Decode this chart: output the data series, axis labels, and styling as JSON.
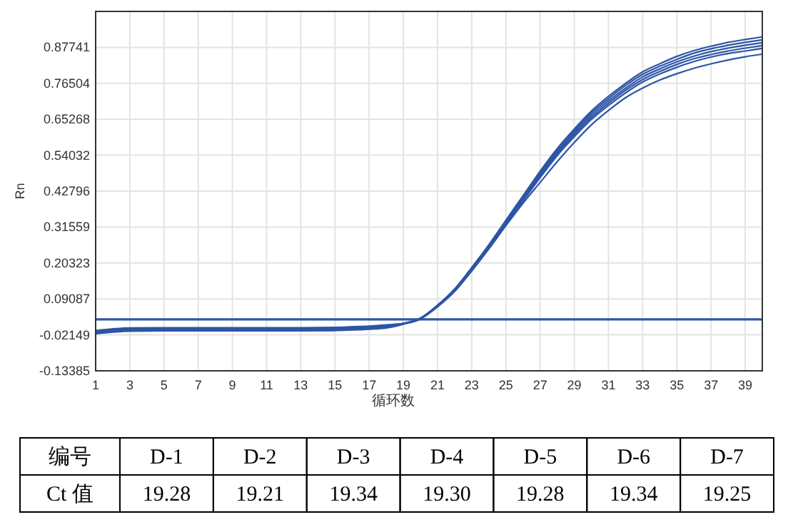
{
  "chart_data": {
    "type": "line",
    "xlabel": "循环数",
    "ylabel": "Rn",
    "x": [
      1,
      3,
      5,
      7,
      9,
      11,
      13,
      15,
      16,
      17,
      18,
      19,
      20,
      21,
      22,
      23,
      24,
      25,
      26,
      27,
      28,
      29,
      30,
      31,
      32,
      33,
      34,
      35,
      36,
      37,
      38,
      39,
      40
    ],
    "series": [
      {
        "color": "#2e55a5",
        "values": [
          -0.008,
          0.0,
          0.001,
          0.001,
          0.001,
          0.001,
          0.001,
          0.002,
          0.004,
          0.006,
          0.01,
          0.014,
          0.031,
          0.071,
          0.122,
          0.189,
          0.26,
          0.337,
          0.413,
          0.49,
          0.561,
          0.622,
          0.678,
          0.724,
          0.765,
          0.801,
          0.826,
          0.849,
          0.867,
          0.881,
          0.893,
          0.902,
          0.91
        ]
      },
      {
        "color": "#2e55a5",
        "values": [
          -0.01,
          -0.002,
          -0.001,
          -0.001,
          -0.001,
          -0.001,
          -0.001,
          0.0,
          0.002,
          0.004,
          0.008,
          0.014,
          0.03,
          0.071,
          0.121,
          0.187,
          0.258,
          0.333,
          0.409,
          0.485,
          0.556,
          0.616,
          0.672,
          0.717,
          0.758,
          0.793,
          0.818,
          0.84,
          0.859,
          0.873,
          0.884,
          0.893,
          0.901
        ]
      },
      {
        "color": "#2e55a5",
        "values": [
          -0.012,
          -0.004,
          -0.003,
          -0.003,
          -0.003,
          -0.003,
          -0.003,
          -0.002,
          0.0,
          0.002,
          0.006,
          0.014,
          0.03,
          0.07,
          0.12,
          0.185,
          0.255,
          0.33,
          0.405,
          0.48,
          0.55,
          0.61,
          0.665,
          0.71,
          0.75,
          0.785,
          0.81,
          0.832,
          0.85,
          0.864,
          0.875,
          0.884,
          0.892
        ]
      },
      {
        "color": "#2e55a5",
        "values": [
          -0.014,
          -0.006,
          -0.005,
          -0.005,
          -0.005,
          -0.005,
          -0.005,
          -0.004,
          -0.002,
          0.0,
          0.004,
          0.014,
          0.03,
          0.069,
          0.119,
          0.183,
          0.252,
          0.327,
          0.401,
          0.475,
          0.545,
          0.604,
          0.658,
          0.703,
          0.743,
          0.777,
          0.802,
          0.824,
          0.842,
          0.855,
          0.866,
          0.875,
          0.883
        ]
      },
      {
        "color": "#2e55a5",
        "values": [
          -0.016,
          -0.008,
          -0.007,
          -0.007,
          -0.007,
          -0.007,
          -0.007,
          -0.006,
          -0.004,
          -0.002,
          0.002,
          0.014,
          0.029,
          0.069,
          0.118,
          0.181,
          0.25,
          0.323,
          0.397,
          0.47,
          0.539,
          0.598,
          0.652,
          0.696,
          0.735,
          0.769,
          0.794,
          0.815,
          0.833,
          0.847,
          0.858,
          0.866,
          0.874
        ]
      },
      {
        "color": "#2e55a5",
        "values": [
          -0.018,
          -0.01,
          -0.009,
          -0.009,
          -0.009,
          -0.009,
          -0.009,
          -0.008,
          -0.006,
          -0.004,
          0.0,
          0.012,
          0.028,
          0.066,
          0.114,
          0.178,
          0.247,
          0.32,
          0.39,
          0.455,
          0.52,
          0.58,
          0.635,
          0.68,
          0.72,
          0.75,
          0.775,
          0.795,
          0.812,
          0.826,
          0.838,
          0.848,
          0.856
        ]
      }
    ],
    "xlim": [
      1,
      40
    ],
    "ylim": [
      -0.13385,
      0.98977
    ],
    "xticks": [
      1,
      3,
      5,
      7,
      9,
      11,
      13,
      15,
      17,
      19,
      21,
      23,
      25,
      27,
      29,
      31,
      33,
      35,
      37,
      39
    ],
    "yticks": [
      -0.13385,
      -0.02149,
      0.09087,
      0.20323,
      0.31559,
      0.42796,
      0.54032,
      0.65268,
      0.76504,
      0.87741
    ],
    "grid": true,
    "marker": "none",
    "line_style": "solid",
    "ref_lines": [
      {
        "axis": "y",
        "value": 0.027,
        "color": "#2e55a5"
      }
    ],
    "annotations": [
      "编号",
      "D-1",
      "D-2",
      "D-3",
      "D-4",
      "D-5",
      "D-6",
      "D-7",
      "Ct 值",
      "19.28",
      "19.21",
      "19.34",
      "19.30",
      "19.28",
      "19.34",
      "19.25"
    ]
  }
}
